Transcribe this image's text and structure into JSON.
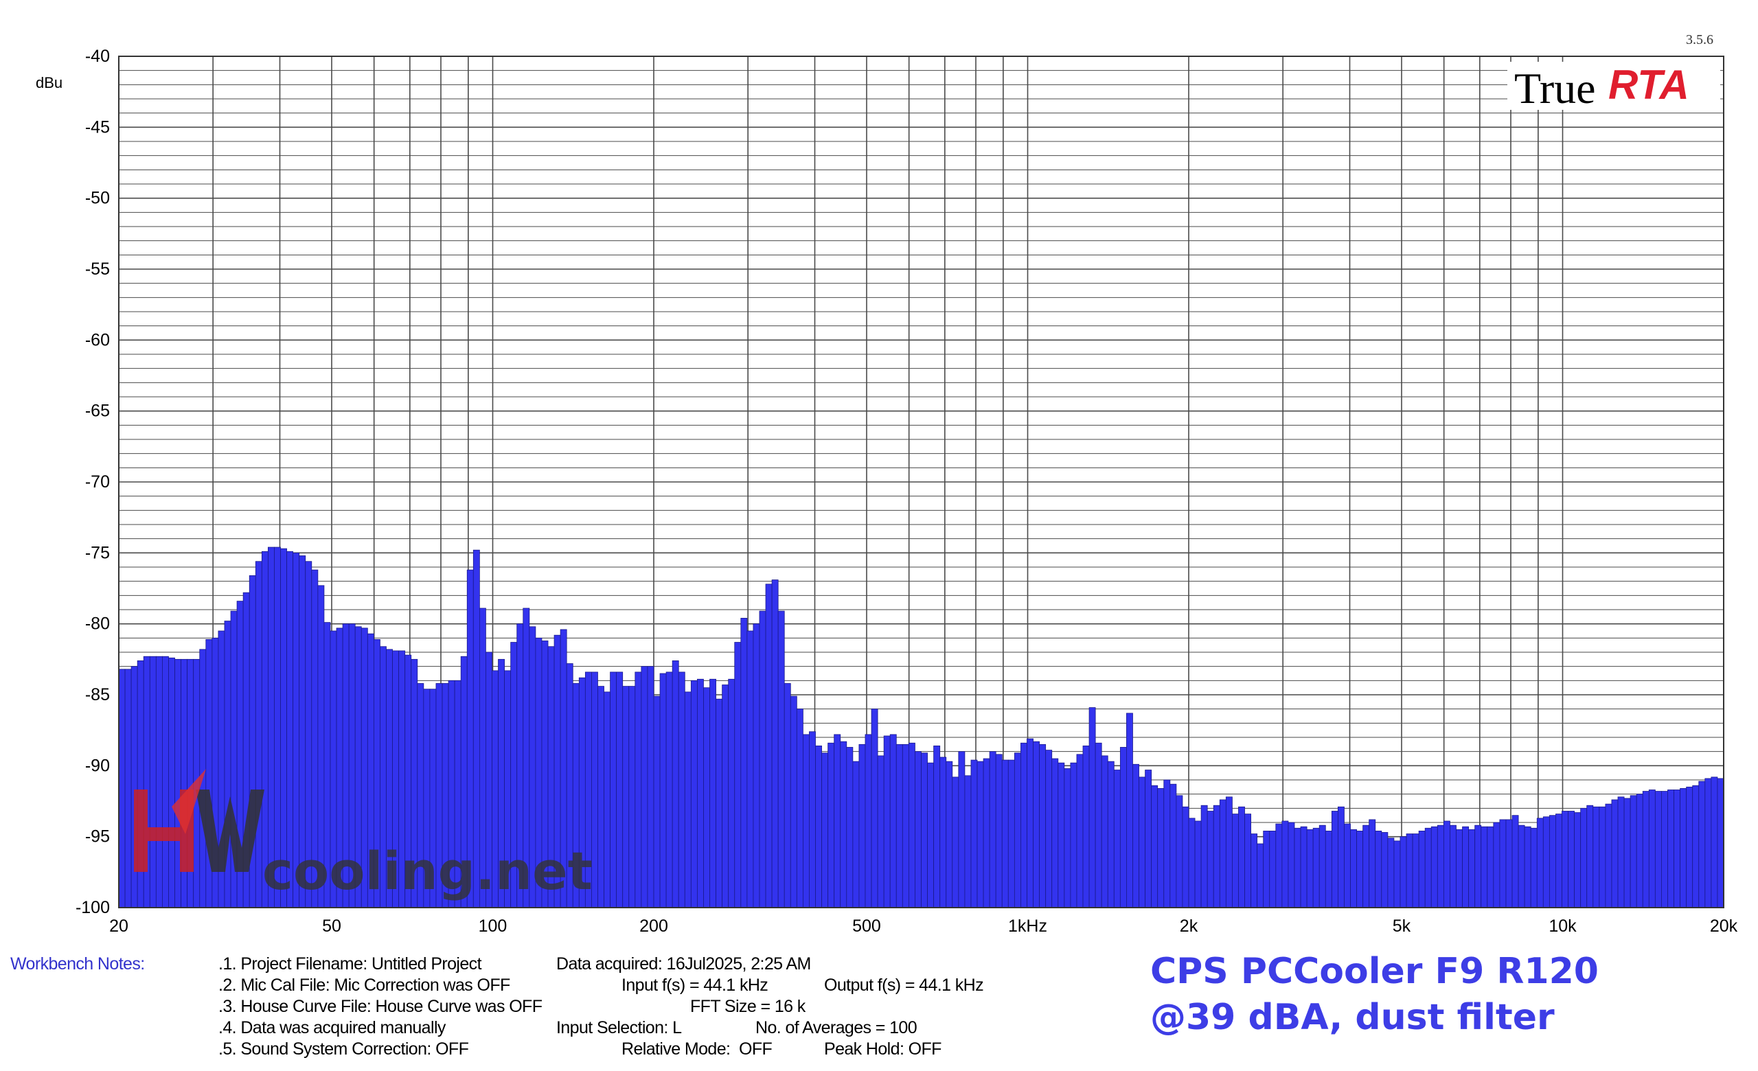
{
  "version": "3.5.6",
  "brand": {
    "true": "True",
    "rta": "RTA",
    "rta_color": "#e01e2e"
  },
  "watermark": {
    "text": "cooling.net"
  },
  "colors": {
    "bar_fill": "#3333ee",
    "bar_stroke": "#1a1a8c",
    "grid": "#4a4a4a",
    "caption": "#3d3de6",
    "notes_label": "#3333cc"
  },
  "chart_data": {
    "type": "bar",
    "ylabel": "dBu",
    "ylim": [
      -100,
      -40
    ],
    "xlim": [
      20,
      20000
    ],
    "x_scale": "log",
    "grid": true,
    "yticks": [
      -40,
      -45,
      -50,
      -55,
      -60,
      -65,
      -70,
      -75,
      -80,
      -85,
      -90,
      -95,
      -100
    ],
    "xticks": [
      {
        "value": 20,
        "label": "20"
      },
      {
        "value": 50,
        "label": "50"
      },
      {
        "value": 100,
        "label": "100"
      },
      {
        "value": 200,
        "label": "200"
      },
      {
        "value": 500,
        "label": "500"
      },
      {
        "value": 1000,
        "label": "1kHz"
      },
      {
        "value": 2000,
        "label": "2k"
      },
      {
        "value": 5000,
        "label": "5k"
      },
      {
        "value": 10000,
        "label": "10k"
      },
      {
        "value": 20000,
        "label": "20k"
      }
    ],
    "bands_per_octave": 24,
    "values": [
      -83.2,
      -83.2,
      -83.0,
      -82.6,
      -82.3,
      -82.3,
      -82.3,
      -82.3,
      -82.4,
      -82.5,
      -82.5,
      -82.5,
      -82.5,
      -81.8,
      -81.1,
      -81.0,
      -80.5,
      -79.8,
      -79.1,
      -78.4,
      -77.8,
      -76.6,
      -75.6,
      -74.9,
      -74.6,
      -74.6,
      -74.7,
      -74.9,
      -75.0,
      -75.2,
      -75.6,
      -76.2,
      -77.3,
      -79.9,
      -80.5,
      -80.3,
      -80.0,
      -80.0,
      -80.2,
      -80.3,
      -80.7,
      -81.1,
      -81.6,
      -81.8,
      -81.9,
      -81.9,
      -82.2,
      -82.5,
      -84.2,
      -84.6,
      -84.6,
      -84.2,
      -84.2,
      -84.0,
      -84.0,
      -82.3,
      -76.2,
      -74.8,
      -78.9,
      -82.0,
      -83.3,
      -82.5,
      -83.3,
      -81.3,
      -80.0,
      -78.9,
      -80.2,
      -81.0,
      -81.2,
      -81.6,
      -80.8,
      -80.4,
      -82.8,
      -84.2,
      -83.8,
      -83.4,
      -83.4,
      -84.4,
      -84.8,
      -83.4,
      -83.4,
      -84.4,
      -84.4,
      -83.4,
      -83.0,
      -83.0,
      -85.1,
      -83.5,
      -83.4,
      -82.6,
      -83.4,
      -84.8,
      -84.0,
      -83.9,
      -84.5,
      -83.9,
      -85.3,
      -84.3,
      -83.9,
      -81.3,
      -79.6,
      -80.5,
      -80.0,
      -79.1,
      -77.2,
      -76.9,
      -79.1,
      -84.2,
      -85.1,
      -86.0,
      -87.8,
      -87.6,
      -88.6,
      -89.1,
      -88.4,
      -87.8,
      -88.3,
      -88.7,
      -89.7,
      -88.5,
      -87.8,
      -86.0,
      -89.3,
      -87.9,
      -87.8,
      -88.5,
      -88.5,
      -88.4,
      -89.0,
      -89.1,
      -89.8,
      -88.6,
      -89.4,
      -89.7,
      -90.8,
      -89.0,
      -90.7,
      -89.6,
      -89.7,
      -89.5,
      -89.0,
      -89.2,
      -89.6,
      -89.6,
      -89.1,
      -88.4,
      -88.1,
      -88.3,
      -88.5,
      -88.9,
      -89.5,
      -89.8,
      -90.2,
      -89.8,
      -89.2,
      -88.6,
      -85.9,
      -88.4,
      -89.3,
      -89.7,
      -90.3,
      -88.7,
      -86.3,
      -89.9,
      -90.8,
      -90.3,
      -91.4,
      -91.6,
      -91.0,
      -91.3,
      -92.1,
      -92.9,
      -93.7,
      -93.9,
      -92.8,
      -93.2,
      -92.8,
      -92.4,
      -92.2,
      -93.4,
      -92.9,
      -93.4,
      -94.8,
      -95.5,
      -94.6,
      -94.6,
      -94.1,
      -93.9,
      -94.0,
      -94.4,
      -94.3,
      -94.5,
      -94.4,
      -94.2,
      -94.6,
      -93.2,
      -92.9,
      -94.1,
      -94.5,
      -94.6,
      -94.2,
      -93.8,
      -94.6,
      -94.7,
      -95.1,
      -95.3,
      -95.0,
      -94.8,
      -94.8,
      -94.6,
      -94.4,
      -94.3,
      -94.2,
      -93.9,
      -94.2,
      -94.5,
      -94.3,
      -94.5,
      -94.2,
      -94.3,
      -94.3,
      -94.0,
      -93.8,
      -93.8,
      -93.5,
      -94.2,
      -94.3,
      -94.4,
      -93.7,
      -93.6,
      -93.5,
      -93.4,
      -93.2,
      -93.2,
      -93.3,
      -93.0,
      -92.8,
      -92.9,
      -92.9,
      -92.7,
      -92.4,
      -92.2,
      -92.3,
      -92.1,
      -92.0,
      -91.8,
      -91.7,
      -91.8,
      -91.8,
      -91.7,
      -91.7,
      -91.6,
      -91.5,
      -91.4,
      -91.1,
      -90.9,
      -90.8,
      -90.9
    ]
  },
  "notes": {
    "label": "Workbench Notes:",
    "items": [
      ".1. Project Filename: Untitled Project",
      ".2. Mic Cal File: Mic Correction was OFF",
      ".3. House Curve File: House Curve was OFF",
      ".4. Data was acquired manually",
      ".5. Sound System Correction: OFF"
    ],
    "data_acquired": "Data acquired: 16Jul2025, 2:25 AM",
    "input_fs": "Input f(s) = 44.1 kHz",
    "output_fs": "Output f(s) = 44.1 kHz",
    "fft_size": "FFT Size = 16 k",
    "input_selection": "Input Selection: L",
    "averages": "No. of Averages = 100",
    "relative_mode": "Relative Mode:  OFF",
    "peak_hold": "Peak Hold: OFF"
  },
  "caption": {
    "line1": "CPS PCCooler F9 R120",
    "line2": "@39 dBA, dust filter"
  }
}
